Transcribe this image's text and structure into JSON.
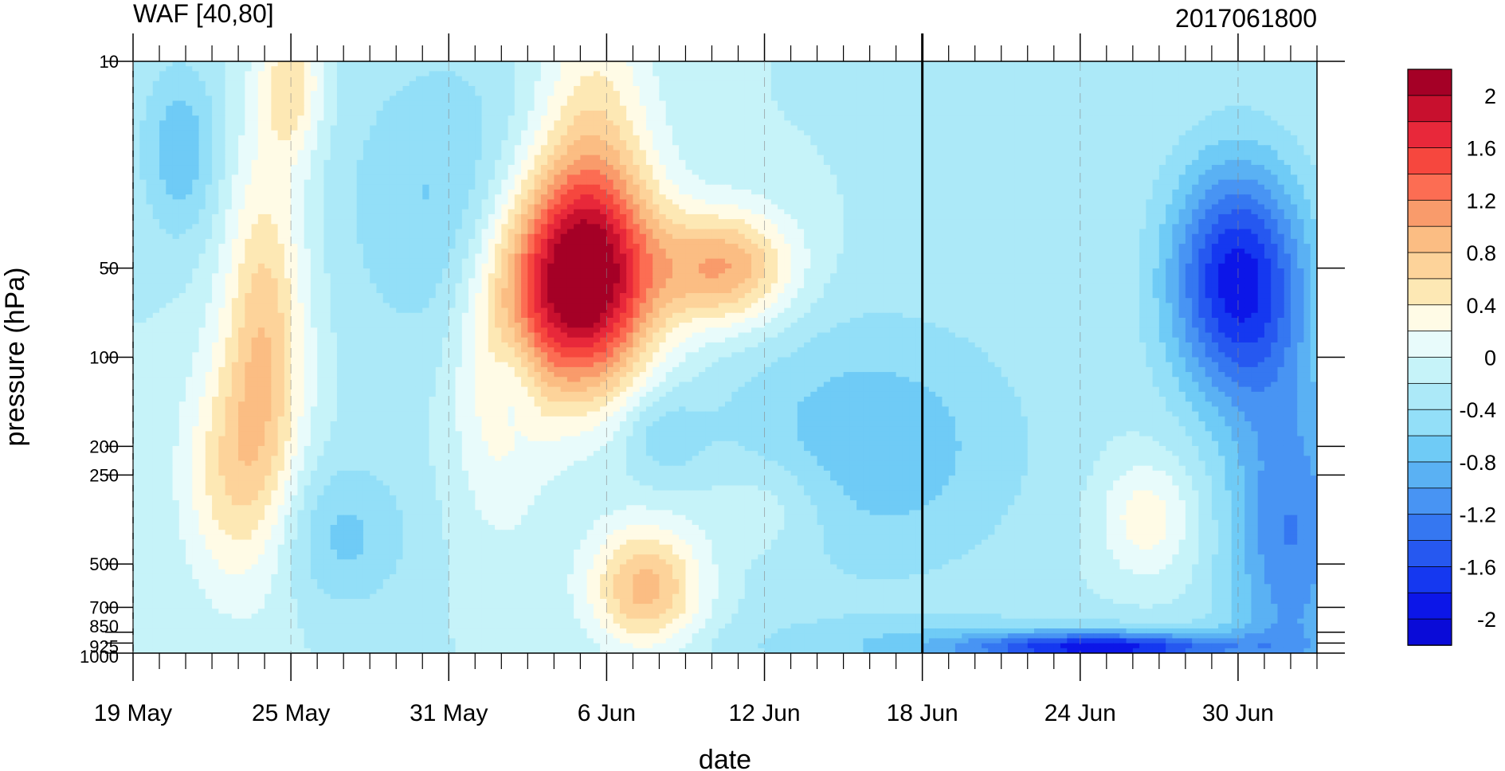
{
  "chart_data": {
    "type": "heatmap",
    "title": "WAF [40,80]",
    "subtitle_right": "2017061800",
    "xlabel": "date",
    "ylabel": "pressure (hPa)",
    "x_tick_labels": [
      "19 May",
      "25 May",
      "31 May",
      "6 Jun",
      "12 Jun",
      "18 Jun",
      "24 Jun",
      "30 Jun"
    ],
    "x_start_day": 0,
    "x_end_day": 45,
    "reference_line_label": "18 Jun",
    "y_scale": "log",
    "y_reversed": true,
    "y_ticks": [
      "10",
      "50",
      "100",
      "200",
      "250",
      "500",
      "700",
      "850",
      "925",
      "1000"
    ],
    "y_range_hpa": [
      10,
      1000
    ],
    "colorbar": {
      "labels": [
        "2",
        "1.6",
        "1.2",
        "0.8",
        "0.4",
        "0",
        "-0.4",
        "-0.8",
        "-1.2",
        "-1.6",
        "-2"
      ],
      "levels_descending": [
        2.2,
        2.0,
        1.8,
        1.6,
        1.4,
        1.2,
        1.0,
        0.8,
        0.6,
        0.4,
        0.2,
        0.0,
        -0.2,
        -0.4,
        -0.6,
        -0.8,
        -1.0,
        -1.2,
        -1.4,
        -1.6,
        -1.8,
        -2.0
      ],
      "colors": [
        "#a50026",
        "#c8102e",
        "#e8283a",
        "#f6473e",
        "#fc6d53",
        "#f99b6b",
        "#fbbd83",
        "#fdd39a",
        "#fde8b4",
        "#fffbe6",
        "#e8fbfb",
        "#c6f3f9",
        "#ace9f8",
        "#93dff8",
        "#6fcbf6",
        "#5ab1f3",
        "#4894f3",
        "#3577f1",
        "#2658f0",
        "#1538f0",
        "#0c16e8",
        "#0a0bd8"
      ]
    },
    "features": [
      {
        "name": "strong positive maximum",
        "day": 17,
        "pressure_hPa": 55,
        "value": 2.2
      },
      {
        "name": "positive lobe",
        "day": 23,
        "pressure_hPa": 50,
        "value": 1.2
      },
      {
        "name": "positive column",
        "day": 5,
        "pressure_hPa": 100,
        "value": 1.0
      },
      {
        "name": "positive lower maximum",
        "day": 21,
        "pressure_hPa": 600,
        "value": 1.2
      },
      {
        "name": "negative minimum",
        "day": 42,
        "pressure_hPa": 50,
        "value": -1.6
      },
      {
        "name": "negative near-surface band",
        "day": 37,
        "pressure_hPa": 960,
        "value": -1.6
      }
    ]
  }
}
